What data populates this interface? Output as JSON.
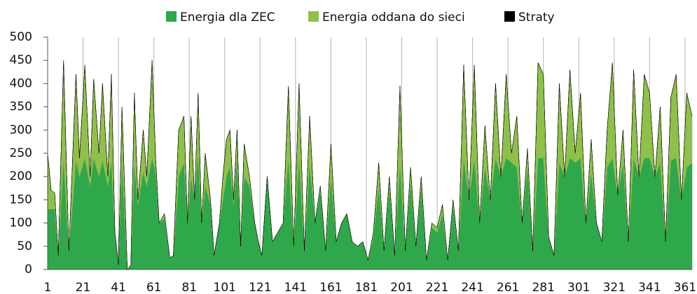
{
  "chart_data": {
    "type": "stacked_area",
    "legend": "top",
    "grid": true,
    "xlim": [
      1,
      365
    ],
    "xticks": [
      1,
      21,
      41,
      61,
      81,
      101,
      121,
      141,
      161,
      181,
      201,
      221,
      241,
      261,
      281,
      301,
      321,
      341,
      361
    ],
    "ylim": [
      0,
      500
    ],
    "yticks": [
      0,
      50,
      100,
      150,
      200,
      250,
      300,
      350,
      400,
      450,
      500
    ],
    "x": [
      1,
      3,
      5,
      7,
      10,
      13,
      17,
      19,
      22,
      25,
      27,
      30,
      32,
      35,
      37,
      39,
      41,
      43,
      46,
      48,
      50,
      52,
      55,
      57,
      60,
      62,
      64,
      67,
      70,
      72,
      75,
      78,
      80,
      82,
      84,
      86,
      88,
      90,
      93,
      95,
      98,
      100,
      102,
      104,
      106,
      108,
      110,
      112,
      115,
      118,
      120,
      122,
      125,
      128,
      131,
      134,
      137,
      140,
      143,
      146,
      149,
      152,
      155,
      158,
      161,
      164,
      167,
      170,
      173,
      176,
      179,
      182,
      185,
      188,
      191,
      194,
      197,
      200,
      203,
      206,
      209,
      212,
      215,
      218,
      221,
      224,
      227,
      230,
      233,
      236,
      239,
      242,
      245,
      248,
      251,
      254,
      257,
      260,
      263,
      266,
      269,
      272,
      275,
      278,
      281,
      284,
      287,
      290,
      293,
      296,
      299,
      302,
      305,
      308,
      311,
      314,
      317,
      320,
      323,
      326,
      329,
      332,
      335,
      338,
      341,
      344,
      347,
      350,
      353,
      356,
      359,
      362,
      365
    ],
    "series": [
      {
        "name": "Energia dla ZEC",
        "color": "#2ea84a",
        "values": [
          130,
          130,
          130,
          30,
          240,
          40,
          235,
          200,
          240,
          180,
          240,
          200,
          235,
          180,
          235,
          80,
          10,
          230,
          0,
          10,
          230,
          140,
          210,
          180,
          240,
          210,
          100,
          110,
          25,
          30,
          200,
          230,
          100,
          200,
          150,
          250,
          100,
          180,
          140,
          30,
          100,
          150,
          200,
          220,
          140,
          240,
          50,
          200,
          180,
          100,
          60,
          30,
          200,
          60,
          80,
          100,
          240,
          50,
          240,
          40,
          230,
          100,
          170,
          40,
          200,
          60,
          100,
          120,
          60,
          50,
          60,
          20,
          70,
          180,
          40,
          180,
          30,
          230,
          40,
          190,
          50,
          180,
          20,
          90,
          80,
          120,
          20,
          140,
          40,
          240,
          150,
          240,
          100,
          220,
          150,
          240,
          200,
          240,
          230,
          220,
          100,
          220,
          40,
          240,
          240,
          70,
          30,
          230,
          200,
          240,
          230,
          240,
          100,
          210,
          100,
          60,
          220,
          240,
          160,
          230,
          60,
          240,
          200,
          240,
          240,
          200,
          230,
          60,
          235,
          240,
          150,
          220,
          230
        ]
      },
      {
        "name": "Energia oddana do sieci",
        "color": "#8fc04a",
        "values": [
          120,
          40,
          35,
          0,
          210,
          0,
          185,
          40,
          200,
          20,
          170,
          50,
          165,
          20,
          185,
          0,
          0,
          120,
          0,
          0,
          150,
          10,
          90,
          20,
          210,
          30,
          0,
          10,
          0,
          0,
          100,
          100,
          0,
          130,
          0,
          130,
          0,
          70,
          10,
          0,
          0,
          50,
          80,
          80,
          10,
          60,
          0,
          70,
          20,
          0,
          0,
          0,
          0,
          0,
          0,
          0,
          155,
          0,
          160,
          0,
          100,
          0,
          10,
          0,
          70,
          0,
          0,
          0,
          0,
          0,
          0,
          0,
          10,
          50,
          0,
          20,
          0,
          165,
          0,
          30,
          0,
          20,
          0,
          10,
          10,
          20,
          0,
          10,
          0,
          200,
          0,
          200,
          0,
          90,
          0,
          160,
          0,
          180,
          20,
          110,
          0,
          40,
          0,
          205,
          180,
          0,
          0,
          170,
          0,
          190,
          20,
          140,
          0,
          70,
          0,
          0,
          80,
          205,
          0,
          70,
          0,
          190,
          0,
          180,
          140,
          0,
          120,
          0,
          135,
          180,
          0,
          160,
          100
        ]
      },
      {
        "name": "Straty",
        "color": "#000000",
        "values": [
          0,
          0,
          0,
          0,
          0,
          0,
          0,
          0,
          0,
          0,
          0,
          0,
          0,
          0,
          0,
          0,
          0,
          0,
          0,
          0,
          0,
          0,
          0,
          0,
          0,
          0,
          0,
          0,
          0,
          0,
          0,
          0,
          0,
          0,
          0,
          0,
          0,
          0,
          0,
          0,
          0,
          0,
          0,
          0,
          0,
          0,
          0,
          0,
          0,
          0,
          0,
          0,
          0,
          0,
          0,
          0,
          0,
          0,
          0,
          0,
          0,
          0,
          0,
          0,
          0,
          0,
          0,
          0,
          0,
          0,
          0,
          0,
          0,
          0,
          0,
          0,
          0,
          0,
          0,
          0,
          0,
          0,
          0,
          0,
          0,
          0,
          0,
          0,
          0,
          0,
          0,
          0,
          0,
          0,
          0,
          0,
          0,
          0,
          0,
          0,
          0,
          0,
          0,
          0,
          0,
          0,
          0,
          0,
          0,
          0,
          0,
          0,
          0,
          0,
          0,
          0,
          0,
          0,
          0,
          0,
          0,
          0,
          0,
          0,
          0,
          0,
          0,
          0,
          0,
          0,
          0,
          0,
          0
        ]
      }
    ]
  }
}
